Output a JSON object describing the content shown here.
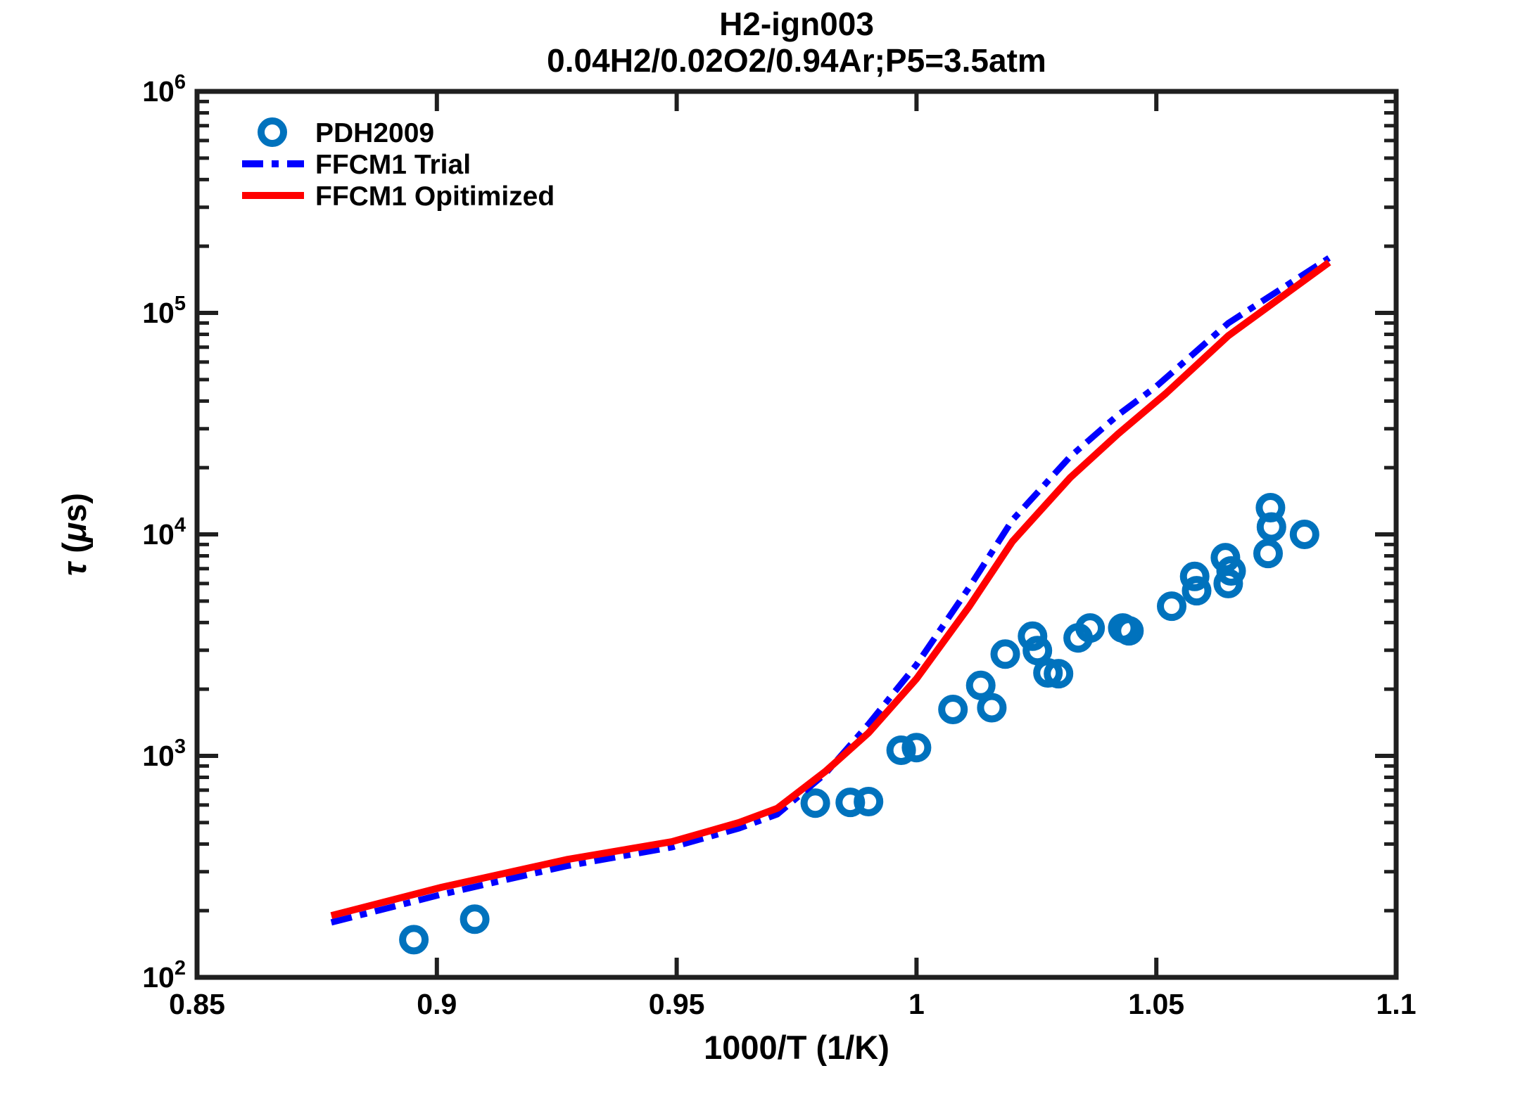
{
  "window": {
    "background": "#ffffff"
  },
  "title": {
    "line1": "H2-ign003",
    "line2": "0.04H2/0.02O2/0.94Ar;P5=3.5atm"
  },
  "legend": {
    "position": "top-left-inside",
    "items": [
      {
        "label": "PDH2009",
        "swatch": "open-circle",
        "color": "#0072BD"
      },
      {
        "label": "FFCM1 Trial",
        "swatch": "dash-dot-line",
        "color": "#0000FF"
      },
      {
        "label": "FFCM1 Opitimized",
        "swatch": "solid-line",
        "color": "#FF0000"
      }
    ]
  },
  "chart_data": {
    "type": "scatter",
    "title": "H2-ign003",
    "subtitle": "0.04H2/0.02O2/0.94Ar;P5=3.5atm",
    "xlabel": "1000/T (1/K)",
    "ylabel": "τ (μs)",
    "ylabel_parts": [
      {
        "text": "τ",
        "italic": true
      },
      {
        "text": " (",
        "italic": false
      },
      {
        "text": "μ",
        "italic": true
      },
      {
        "text": "s)",
        "italic": false
      }
    ],
    "xlim": [
      0.85,
      1.1
    ],
    "yscale": "log",
    "ylim": [
      100,
      1000000
    ],
    "grid": false,
    "axis_color": "#1f1f1f",
    "x_ticks": [
      0.85,
      0.9,
      0.95,
      1.0,
      1.05,
      1.1
    ],
    "x_tick_labels": [
      "0.85",
      "0.9",
      "0.95",
      "1",
      "1.05",
      "1.1"
    ],
    "y_tick_exponents": [
      2,
      3,
      4,
      5,
      6
    ],
    "legend_position": "top-left-inside",
    "series": [
      {
        "name": "PDH2009",
        "kind": "scatter",
        "marker": "open-circle",
        "color": "#0072BD",
        "points": [
          [
            0.8952,
            148
          ],
          [
            0.9079,
            183
          ],
          [
            0.9789,
            612
          ],
          [
            0.9862,
            617
          ],
          [
            0.99,
            622
          ],
          [
            0.9968,
            1060
          ],
          [
            1.0,
            1090
          ],
          [
            1.0076,
            1620
          ],
          [
            1.0134,
            2080
          ],
          [
            1.0157,
            1650
          ],
          [
            1.0185,
            2880
          ],
          [
            1.0242,
            3470
          ],
          [
            1.0252,
            2990
          ],
          [
            1.0274,
            2370
          ],
          [
            1.0296,
            2350
          ],
          [
            1.0337,
            3410
          ],
          [
            1.0362,
            3780
          ],
          [
            1.043,
            3780
          ],
          [
            1.0443,
            3670
          ],
          [
            1.0532,
            4740
          ],
          [
            1.058,
            6460
          ],
          [
            1.0584,
            5570
          ],
          [
            1.0644,
            7850
          ],
          [
            1.0656,
            6840
          ],
          [
            1.065,
            6000
          ],
          [
            1.0733,
            8200
          ],
          [
            1.0738,
            13200
          ],
          [
            1.074,
            10800
          ],
          [
            1.0809,
            10000
          ]
        ]
      },
      {
        "name": "FFCM1 Trial",
        "kind": "line",
        "line_style": "dash-dot",
        "color": "#0000FF",
        "points": [
          [
            0.878,
            177
          ],
          [
            0.901,
            237
          ],
          [
            0.927,
            318
          ],
          [
            0.949,
            387
          ],
          [
            0.963,
            471
          ],
          [
            0.971,
            545
          ],
          [
            0.981,
            832
          ],
          [
            0.99,
            1390
          ],
          [
            1.0,
            2580
          ],
          [
            1.011,
            5770
          ],
          [
            1.02,
            11600
          ],
          [
            1.032,
            22400
          ],
          [
            1.042,
            34600
          ],
          [
            1.05,
            46600
          ],
          [
            1.065,
            89900
          ],
          [
            1.086,
            177000
          ]
        ]
      },
      {
        "name": "FFCM1 Opitimized",
        "kind": "line",
        "line_style": "solid",
        "color": "#FF0000",
        "points": [
          [
            0.878,
            190
          ],
          [
            0.901,
            255
          ],
          [
            0.927,
            340
          ],
          [
            0.949,
            410
          ],
          [
            0.963,
            500
          ],
          [
            0.971,
            580
          ],
          [
            0.981,
            851
          ],
          [
            0.99,
            1270
          ],
          [
            1.0,
            2230
          ],
          [
            1.011,
            4730
          ],
          [
            1.02,
            9290
          ],
          [
            1.032,
            18000
          ],
          [
            1.042,
            28400
          ],
          [
            1.052,
            43300
          ],
          [
            1.065,
            78800
          ],
          [
            1.086,
            169000
          ]
        ]
      }
    ]
  }
}
